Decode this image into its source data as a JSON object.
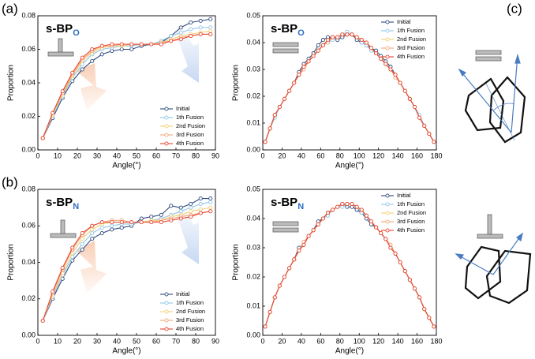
{
  "panel_labels": [
    "(a)",
    "(b)",
    "(c)"
  ],
  "chart_data": [
    {
      "type": "line",
      "title": "s-BP",
      "title_subscript": "O",
      "x_label": "Angle(°)",
      "y_label": "Proportion",
      "legend": "lower right",
      "panel": 0,
      "x": [
        2.5,
        7.5,
        12.5,
        17.5,
        22.5,
        27.5,
        32.5,
        37.5,
        42.5,
        47.5,
        52.5,
        57.5,
        62.5,
        67.5,
        72.5,
        77.5,
        82.5,
        87.5
      ],
      "xlim": [
        0,
        90
      ],
      "xticks": [
        0,
        10,
        20,
        30,
        40,
        50,
        60,
        70,
        80,
        90
      ],
      "ylim": [
        0,
        0.08
      ],
      "yticks": [
        {
          "value": 0,
          "label": "0.00"
        },
        {
          "value": 0.02,
          "label": "0.02"
        },
        {
          "value": 0.04,
          "label": "0.04"
        },
        {
          "value": 0.06,
          "label": "0.06"
        },
        {
          "value": 0.08,
          "label": "0.08"
        }
      ],
      "series": [
        {
          "name": "Initial",
          "color": "#2e4a7d",
          "values": [
            0.007,
            0.019,
            0.031,
            0.041,
            0.048,
            0.053,
            0.057,
            0.059,
            0.06,
            0.06,
            0.062,
            0.063,
            0.064,
            0.068,
            0.073,
            0.076,
            0.077,
            0.078
          ]
        },
        {
          "name": "1th Fusion",
          "color": "#8ec5e8",
          "values": [
            0.007,
            0.02,
            0.032,
            0.043,
            0.051,
            0.057,
            0.06,
            0.061,
            0.062,
            0.062,
            0.063,
            0.063,
            0.065,
            0.068,
            0.07,
            0.072,
            0.073,
            0.073
          ]
        },
        {
          "name": "2nd Fusion",
          "color": "#f2cf72",
          "values": [
            0.007,
            0.021,
            0.033,
            0.044,
            0.053,
            0.058,
            0.061,
            0.062,
            0.062,
            0.063,
            0.063,
            0.063,
            0.064,
            0.066,
            0.068,
            0.069,
            0.07,
            0.071
          ]
        },
        {
          "name": "3rd Fusion",
          "color": "#f2a577",
          "values": [
            0.007,
            0.022,
            0.034,
            0.045,
            0.054,
            0.059,
            0.062,
            0.062,
            0.063,
            0.063,
            0.063,
            0.063,
            0.064,
            0.065,
            0.067,
            0.068,
            0.069,
            0.069
          ]
        },
        {
          "name": "4th Fusion",
          "color": "#e8442f",
          "values": [
            0.007,
            0.022,
            0.035,
            0.046,
            0.055,
            0.06,
            0.062,
            0.063,
            0.063,
            0.063,
            0.063,
            0.063,
            0.063,
            0.065,
            0.066,
            0.068,
            0.069,
            0.069
          ]
        }
      ]
    },
    {
      "type": "line",
      "title": "s-BP",
      "title_subscript": "O",
      "x_label": "Angle(°)",
      "y_label": "Proportion",
      "legend": "upper right",
      "panel": 1,
      "x": [
        2.5,
        7.5,
        12.5,
        17.5,
        22.5,
        27.5,
        32.5,
        37.5,
        42.5,
        47.5,
        52.5,
        57.5,
        62.5,
        67.5,
        72.5,
        77.5,
        82.5,
        87.5,
        92.5,
        97.5,
        102.5,
        107.5,
        112.5,
        117.5,
        122.5,
        127.5,
        132.5,
        137.5,
        142.5,
        147.5,
        152.5,
        157.5,
        162.5,
        167.5,
        172.5,
        177.5
      ],
      "xlim": [
        0,
        180
      ],
      "xticks": [
        0,
        20,
        40,
        60,
        80,
        100,
        120,
        140,
        160,
        180
      ],
      "ylim": [
        0,
        0.05
      ],
      "yticks": [
        {
          "value": 0,
          "label": "0.00"
        },
        {
          "value": 0.01,
          "label": "0.01"
        },
        {
          "value": 0.02,
          "label": "0.02"
        },
        {
          "value": 0.03,
          "label": "0.03"
        },
        {
          "value": 0.04,
          "label": "0.04"
        },
        {
          "value": 0.05,
          "label": "0.05"
        }
      ],
      "series": [
        {
          "name": "Initial",
          "color": "#2e4a7d",
          "values": [
            0.003,
            0.008,
            0.013,
            0.016,
            0.019,
            0.022,
            0.025,
            0.029,
            0.032,
            0.034,
            0.036,
            0.039,
            0.041,
            0.042,
            0.042,
            0.041,
            0.042,
            0.043,
            0.043,
            0.041,
            0.04,
            0.039,
            0.038,
            0.037,
            0.035,
            0.033,
            0.031,
            0.028,
            0.025,
            0.022,
            0.019,
            0.016,
            0.012,
            0.009,
            0.006,
            0.003
          ]
        },
        {
          "name": "1th Fusion",
          "color": "#8ec5e8",
          "values": [
            0.003,
            0.008,
            0.012,
            0.016,
            0.019,
            0.022,
            0.025,
            0.028,
            0.031,
            0.033,
            0.035,
            0.037,
            0.039,
            0.04,
            0.041,
            0.042,
            0.043,
            0.044,
            0.043,
            0.042,
            0.04,
            0.039,
            0.037,
            0.036,
            0.034,
            0.032,
            0.03,
            0.028,
            0.025,
            0.022,
            0.019,
            0.016,
            0.013,
            0.009,
            0.006,
            0.003
          ]
        },
        {
          "name": "2nd Fusion",
          "color": "#f2cf72",
          "values": [
            0.003,
            0.008,
            0.013,
            0.016,
            0.019,
            0.022,
            0.025,
            0.028,
            0.031,
            0.033,
            0.035,
            0.037,
            0.039,
            0.041,
            0.042,
            0.042,
            0.043,
            0.043,
            0.043,
            0.042,
            0.041,
            0.04,
            0.038,
            0.036,
            0.034,
            0.032,
            0.03,
            0.028,
            0.025,
            0.022,
            0.019,
            0.016,
            0.012,
            0.009,
            0.006,
            0.003
          ]
        },
        {
          "name": "3rd Fusion",
          "color": "#f2a577",
          "values": [
            0.003,
            0.008,
            0.013,
            0.016,
            0.019,
            0.022,
            0.025,
            0.028,
            0.03,
            0.033,
            0.035,
            0.037,
            0.039,
            0.04,
            0.042,
            0.042,
            0.043,
            0.043,
            0.043,
            0.042,
            0.041,
            0.04,
            0.038,
            0.036,
            0.034,
            0.032,
            0.03,
            0.027,
            0.025,
            0.022,
            0.019,
            0.016,
            0.012,
            0.009,
            0.006,
            0.003
          ]
        },
        {
          "name": "4th Fusion",
          "color": "#e8442f",
          "values": [
            0.003,
            0.008,
            0.013,
            0.016,
            0.019,
            0.022,
            0.025,
            0.028,
            0.031,
            0.033,
            0.035,
            0.037,
            0.039,
            0.041,
            0.042,
            0.042,
            0.043,
            0.043,
            0.043,
            0.042,
            0.041,
            0.04,
            0.038,
            0.036,
            0.034,
            0.032,
            0.03,
            0.028,
            0.025,
            0.022,
            0.019,
            0.016,
            0.012,
            0.009,
            0.006,
            0.003
          ]
        }
      ]
    },
    {
      "type": "line",
      "title": "s-BP",
      "title_subscript": "N",
      "x_label": "Angle(°)",
      "y_label": "Proportion",
      "legend": "lower right",
      "panel": 2,
      "x": [
        2.5,
        7.5,
        12.5,
        17.5,
        22.5,
        27.5,
        32.5,
        37.5,
        42.5,
        47.5,
        52.5,
        57.5,
        62.5,
        67.5,
        72.5,
        77.5,
        82.5,
        87.5
      ],
      "xlim": [
        0,
        90
      ],
      "xticks": [
        0,
        10,
        20,
        30,
        40,
        50,
        60,
        70,
        80,
        90
      ],
      "ylim": [
        0,
        0.08
      ],
      "yticks": [
        {
          "value": 0,
          "label": "0.00"
        },
        {
          "value": 0.02,
          "label": "0.02"
        },
        {
          "value": 0.04,
          "label": "0.04"
        },
        {
          "value": 0.06,
          "label": "0.06"
        },
        {
          "value": 0.08,
          "label": "0.08"
        }
      ],
      "series": [
        {
          "name": "Initial",
          "color": "#2e4a7d",
          "values": [
            0.008,
            0.02,
            0.031,
            0.041,
            0.047,
            0.053,
            0.056,
            0.058,
            0.059,
            0.06,
            0.064,
            0.065,
            0.066,
            0.071,
            0.07,
            0.072,
            0.075,
            0.075
          ]
        },
        {
          "name": "1th Fusion",
          "color": "#8ec5e8",
          "values": [
            0.008,
            0.021,
            0.033,
            0.043,
            0.05,
            0.056,
            0.059,
            0.06,
            0.061,
            0.061,
            0.062,
            0.063,
            0.064,
            0.066,
            0.068,
            0.07,
            0.072,
            0.073
          ]
        },
        {
          "name": "2nd Fusion",
          "color": "#f2cf72",
          "values": [
            0.008,
            0.022,
            0.034,
            0.045,
            0.053,
            0.058,
            0.061,
            0.062,
            0.062,
            0.062,
            0.062,
            0.063,
            0.063,
            0.065,
            0.066,
            0.068,
            0.069,
            0.07
          ]
        },
        {
          "name": "3rd Fusion",
          "color": "#f2a577",
          "values": [
            0.008,
            0.023,
            0.036,
            0.047,
            0.055,
            0.06,
            0.062,
            0.063,
            0.063,
            0.062,
            0.062,
            0.062,
            0.063,
            0.064,
            0.065,
            0.066,
            0.067,
            0.068
          ]
        },
        {
          "name": "4th Fusion",
          "color": "#e8442f",
          "values": [
            0.008,
            0.024,
            0.037,
            0.048,
            0.056,
            0.06,
            0.062,
            0.062,
            0.062,
            0.062,
            0.062,
            0.062,
            0.062,
            0.063,
            0.064,
            0.065,
            0.067,
            0.068
          ]
        }
      ]
    },
    {
      "type": "line",
      "title": "s-BP",
      "title_subscript": "N",
      "x_label": "Angle(°)",
      "y_label": "Proportion",
      "legend": "upper right",
      "panel": 3,
      "x": [
        2.5,
        7.5,
        12.5,
        17.5,
        22.5,
        27.5,
        32.5,
        37.5,
        42.5,
        47.5,
        52.5,
        57.5,
        62.5,
        67.5,
        72.5,
        77.5,
        82.5,
        87.5,
        92.5,
        97.5,
        102.5,
        107.5,
        112.5,
        117.5,
        122.5,
        127.5,
        132.5,
        137.5,
        142.5,
        147.5,
        152.5,
        157.5,
        162.5,
        167.5,
        172.5,
        177.5
      ],
      "xlim": [
        0,
        180
      ],
      "xticks": [
        0,
        20,
        40,
        60,
        80,
        100,
        120,
        140,
        160,
        180
      ],
      "ylim": [
        0,
        0.05
      ],
      "yticks": [
        {
          "value": 0,
          "label": "0.00"
        },
        {
          "value": 0.01,
          "label": "0.01"
        },
        {
          "value": 0.02,
          "label": "0.02"
        },
        {
          "value": 0.03,
          "label": "0.03"
        },
        {
          "value": 0.04,
          "label": "0.04"
        },
        {
          "value": 0.05,
          "label": "0.05"
        }
      ],
      "series": [
        {
          "name": "Initial",
          "color": "#2e4a7d",
          "values": [
            0.003,
            0.008,
            0.013,
            0.017,
            0.02,
            0.023,
            0.026,
            0.03,
            0.031,
            0.034,
            0.036,
            0.039,
            0.04,
            0.042,
            0.043,
            0.044,
            0.045,
            0.044,
            0.044,
            0.043,
            0.042,
            0.04,
            0.038,
            0.037,
            0.035,
            0.033,
            0.03,
            0.028,
            0.025,
            0.022,
            0.019,
            0.016,
            0.013,
            0.009,
            0.006,
            0.003
          ]
        },
        {
          "name": "1th Fusion",
          "color": "#8ec5e8",
          "values": [
            0.003,
            0.008,
            0.013,
            0.017,
            0.02,
            0.023,
            0.026,
            0.029,
            0.031,
            0.034,
            0.036,
            0.038,
            0.04,
            0.041,
            0.043,
            0.044,
            0.044,
            0.045,
            0.045,
            0.044,
            0.042,
            0.041,
            0.039,
            0.037,
            0.035,
            0.033,
            0.03,
            0.028,
            0.025,
            0.022,
            0.019,
            0.016,
            0.013,
            0.009,
            0.006,
            0.003
          ]
        },
        {
          "name": "2nd Fusion",
          "color": "#f2cf72",
          "values": [
            0.003,
            0.008,
            0.013,
            0.017,
            0.02,
            0.023,
            0.026,
            0.029,
            0.031,
            0.034,
            0.036,
            0.038,
            0.04,
            0.042,
            0.043,
            0.044,
            0.045,
            0.045,
            0.045,
            0.044,
            0.043,
            0.041,
            0.039,
            0.037,
            0.035,
            0.033,
            0.03,
            0.028,
            0.025,
            0.022,
            0.019,
            0.016,
            0.013,
            0.009,
            0.006,
            0.003
          ]
        },
        {
          "name": "3rd Fusion",
          "color": "#f2a577",
          "values": [
            0.003,
            0.008,
            0.013,
            0.017,
            0.02,
            0.023,
            0.026,
            0.029,
            0.032,
            0.034,
            0.036,
            0.038,
            0.04,
            0.042,
            0.043,
            0.044,
            0.045,
            0.045,
            0.045,
            0.044,
            0.043,
            0.041,
            0.039,
            0.037,
            0.035,
            0.033,
            0.031,
            0.028,
            0.025,
            0.022,
            0.019,
            0.016,
            0.013,
            0.009,
            0.006,
            0.003
          ]
        },
        {
          "name": "4th Fusion",
          "color": "#e8442f",
          "values": [
            0.003,
            0.008,
            0.013,
            0.017,
            0.02,
            0.023,
            0.026,
            0.029,
            0.031,
            0.034,
            0.036,
            0.038,
            0.04,
            0.042,
            0.043,
            0.044,
            0.045,
            0.045,
            0.045,
            0.044,
            0.043,
            0.041,
            0.039,
            0.037,
            0.035,
            0.033,
            0.03,
            0.028,
            0.025,
            0.022,
            0.019,
            0.016,
            0.013,
            0.009,
            0.006,
            0.003
          ]
        }
      ]
    }
  ]
}
